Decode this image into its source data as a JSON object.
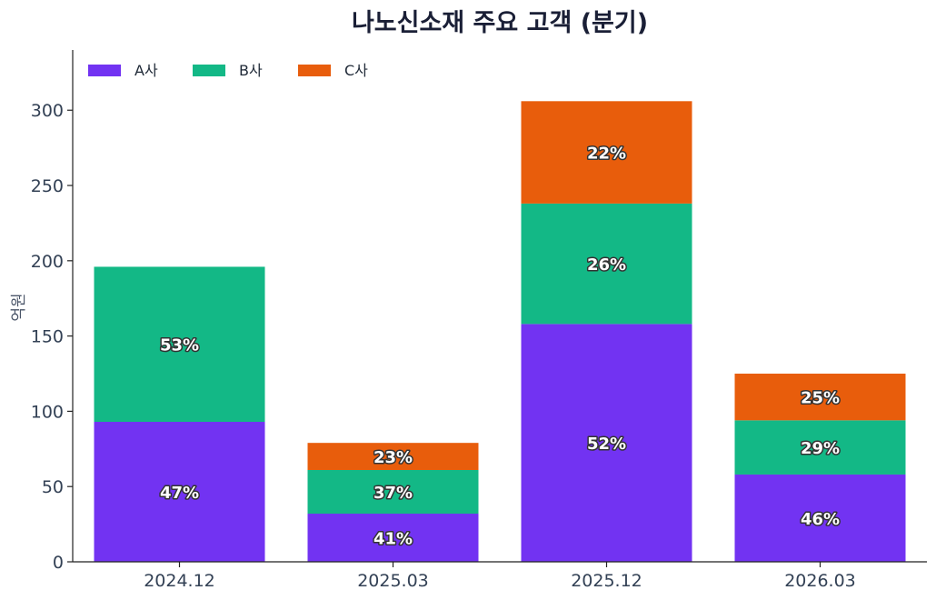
{
  "chart_data": {
    "type": "bar",
    "stacked": true,
    "title": "나노신소재 주요 고객 (분기)",
    "xlabel": "",
    "ylabel": "억원",
    "ylim": [
      0,
      340
    ],
    "yticks": [
      0,
      50,
      100,
      150,
      200,
      250,
      300
    ],
    "categories": [
      "2024.12",
      "2025.03",
      "2025.12",
      "2026.03"
    ],
    "legend_position": "top-left",
    "grid": false,
    "series": [
      {
        "name": "A사",
        "color": "#7233f2",
        "values": [
          93,
          32,
          158,
          58
        ],
        "labels": [
          "47%",
          "41%",
          "52%",
          "46%"
        ]
      },
      {
        "name": "B사",
        "color": "#13b886",
        "values": [
          103,
          29,
          80,
          36
        ],
        "labels": [
          "53%",
          "37%",
          "26%",
          "29%"
        ]
      },
      {
        "name": "C사",
        "color": "#e85d0c",
        "values": [
          0,
          18,
          68,
          31
        ],
        "labels": [
          "",
          "23%",
          "22%",
          "25%"
        ]
      }
    ]
  }
}
